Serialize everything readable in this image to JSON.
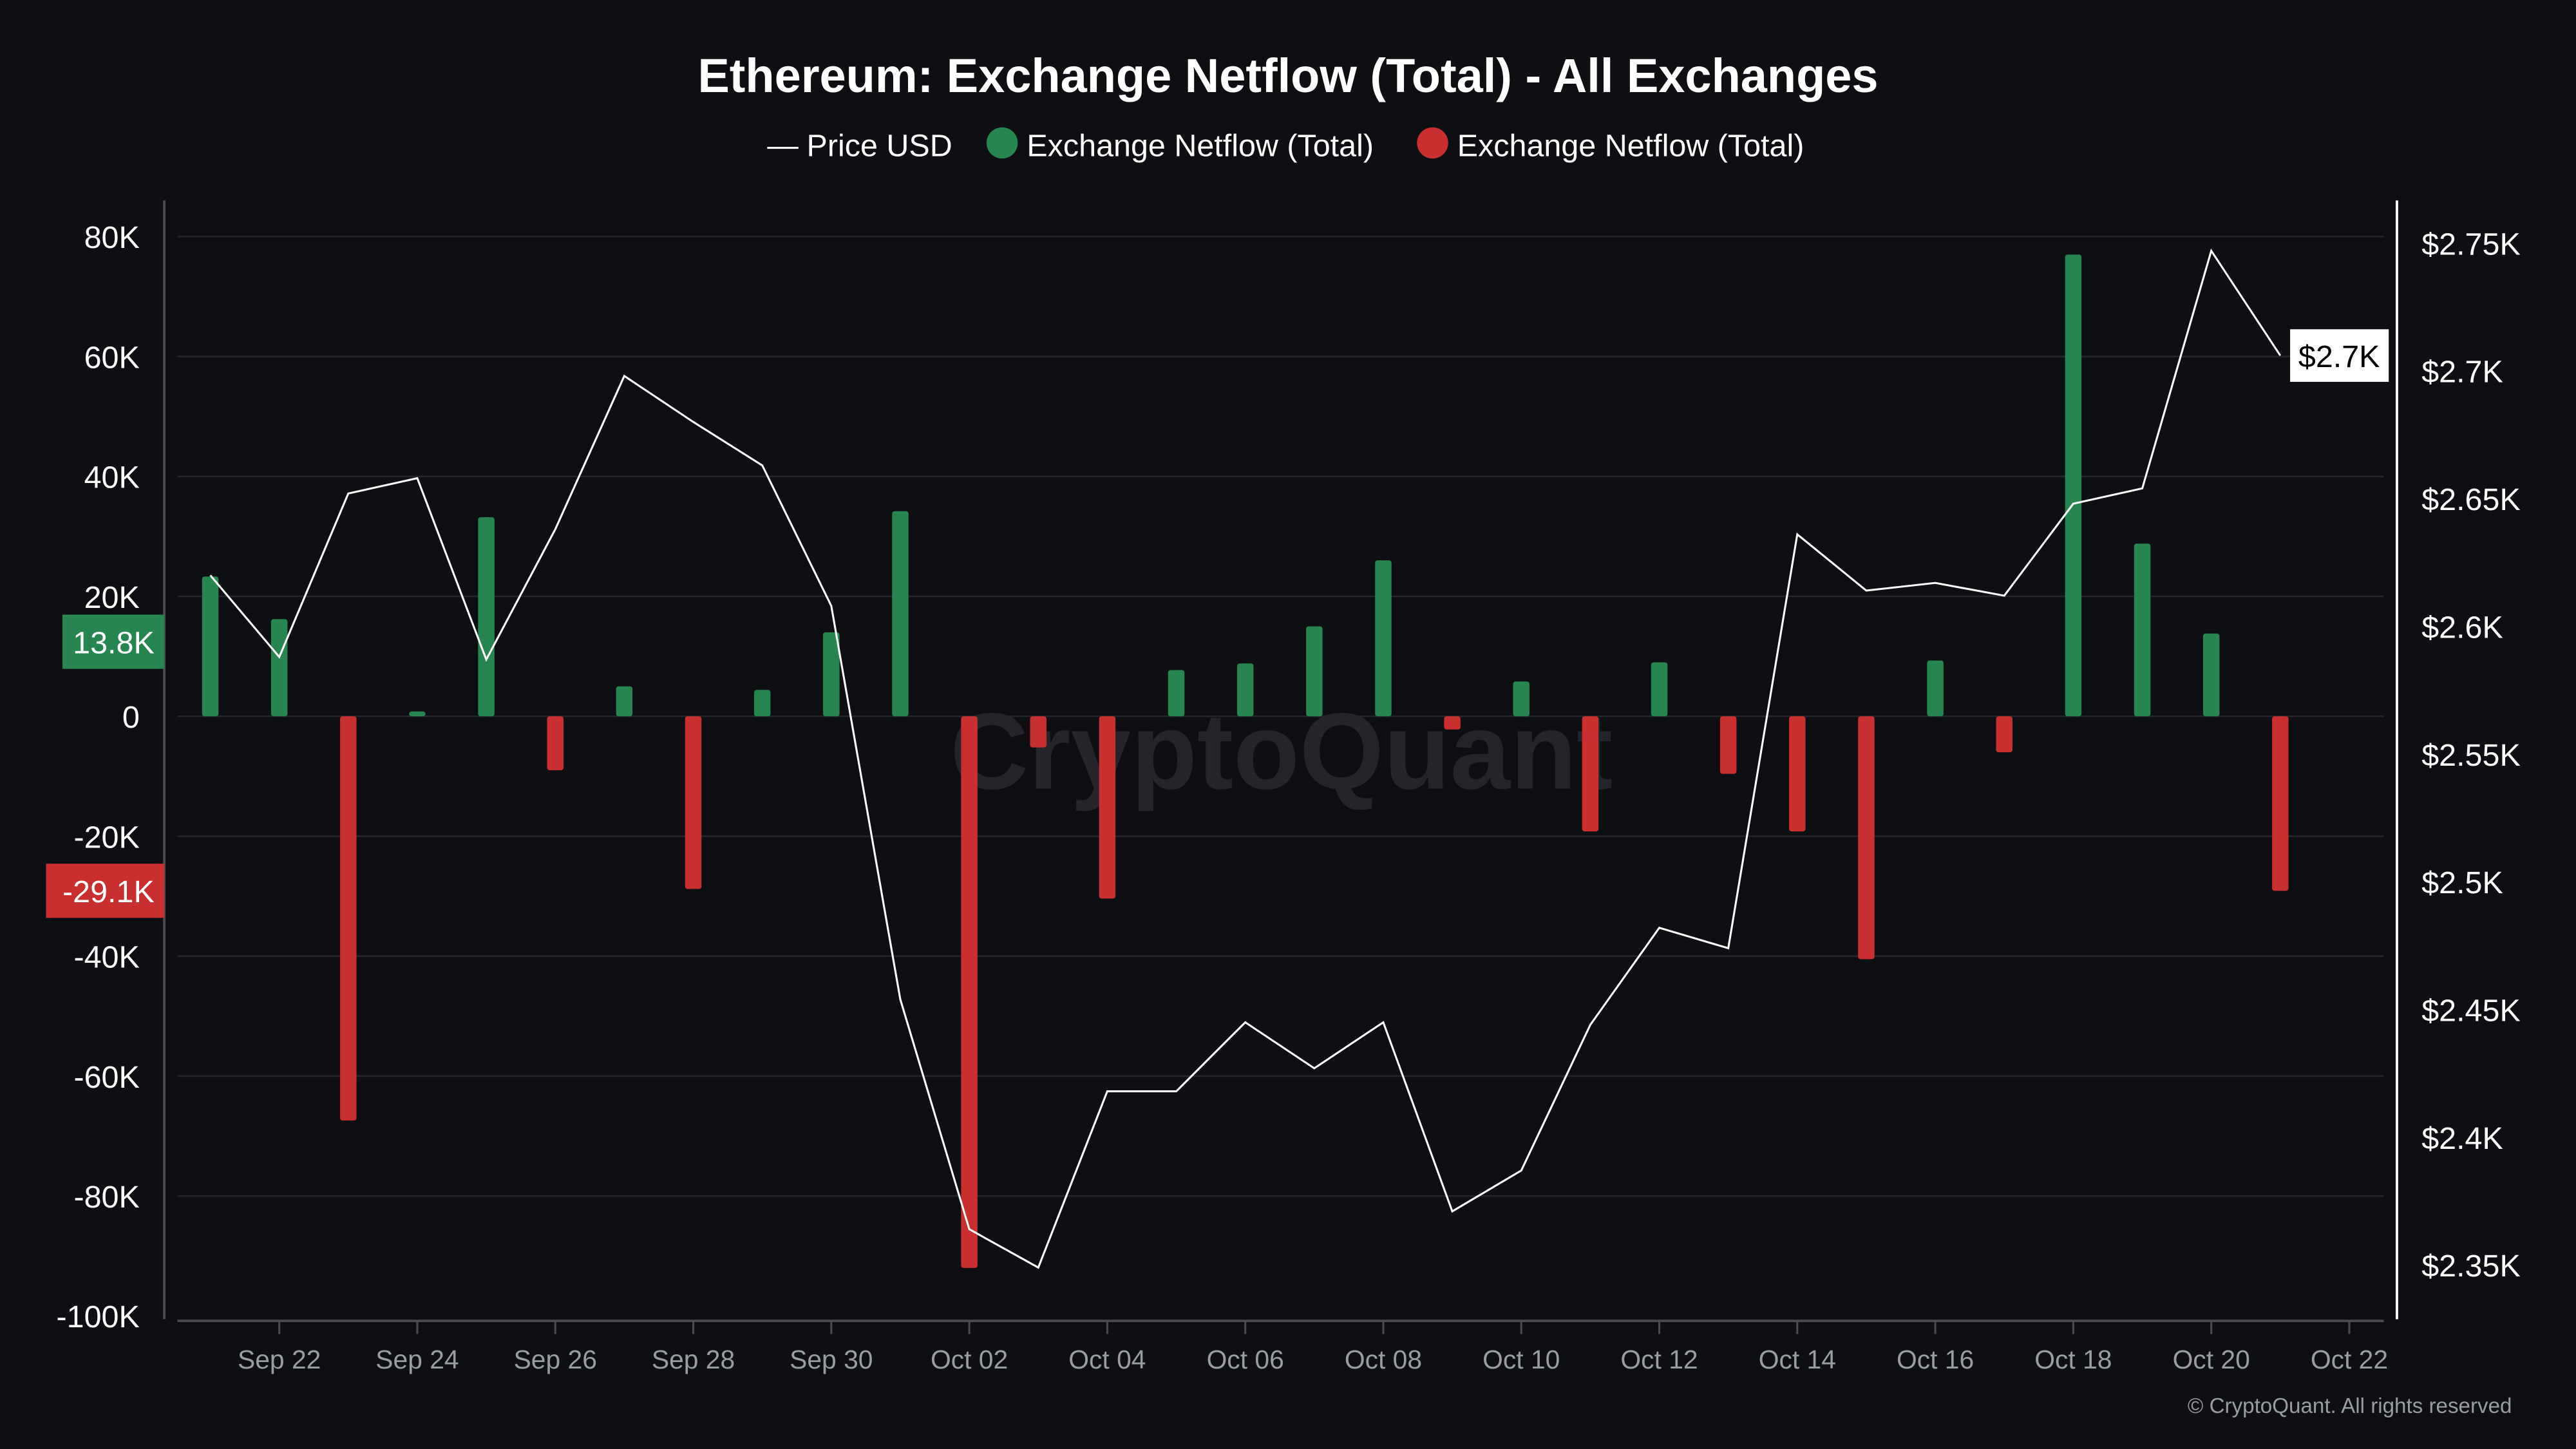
{
  "chart_data": {
    "type": "bar",
    "title": "Ethereum: Exchange Netflow (Total) - All Exchanges",
    "legend": {
      "placement": "top-center",
      "entries": [
        {
          "label": "Price USD",
          "marker": "line",
          "color": "#ffffff"
        },
        {
          "label": "Exchange Netflow (Total)",
          "marker": "dot",
          "color": "#27854f"
        },
        {
          "label": "Exchange Netflow (Total)",
          "marker": "dot",
          "color": "#c92f2f"
        }
      ]
    },
    "x": [
      "2024-09-21",
      "2024-09-22",
      "2024-09-23",
      "2024-09-24",
      "2024-09-25",
      "2024-09-26",
      "2024-09-27",
      "2024-09-28",
      "2024-09-29",
      "2024-09-30",
      "2024-10-01",
      "2024-10-02",
      "2024-10-03",
      "2024-10-04",
      "2024-10-05",
      "2024-10-06",
      "2024-10-07",
      "2024-10-08",
      "2024-10-09",
      "2024-10-10",
      "2024-10-11",
      "2024-10-12",
      "2024-10-13",
      "2024-10-14",
      "2024-10-15",
      "2024-10-16",
      "2024-10-17",
      "2024-10-18",
      "2024-10-19",
      "2024-10-20",
      "2024-10-21"
    ],
    "x_tick_labels": [
      "Sep 22",
      "Sep 24",
      "Sep 26",
      "Sep 28",
      "Sep 30",
      "Oct 02",
      "Oct 04",
      "Oct 06",
      "Oct 08",
      "Oct 10",
      "Oct 12",
      "Oct 14",
      "Oct 16",
      "Oct 18",
      "Oct 20",
      "Oct 22"
    ],
    "x_tick_dates": [
      "2024-09-22",
      "2024-09-24",
      "2024-09-26",
      "2024-09-28",
      "2024-09-30",
      "2024-10-02",
      "2024-10-04",
      "2024-10-06",
      "2024-10-08",
      "2024-10-10",
      "2024-10-12",
      "2024-10-14",
      "2024-10-16",
      "2024-10-18",
      "2024-10-20",
      "2024-10-22"
    ],
    "series": [
      {
        "name": "Exchange Netflow (Total)",
        "axis": "left",
        "type": "bar",
        "positive_color": "#27854f",
        "negative_color": "#c92f2f",
        "values": [
          23300,
          16200,
          -67400,
          800,
          33200,
          -9000,
          5000,
          -28800,
          4400,
          14000,
          34200,
          -92000,
          -5200,
          -30400,
          7700,
          8800,
          15000,
          26000,
          -2200,
          5800,
          -19200,
          9000,
          -9600,
          -19200,
          -40500,
          9300,
          -6000,
          77000,
          28800,
          13800,
          -29100
        ]
      },
      {
        "name": "Price USD",
        "axis": "right",
        "type": "line",
        "color": "#ffffff",
        "values": [
          2620,
          2588,
          2652,
          2658,
          2587,
          2638,
          2698,
          2680,
          2663,
          2608,
          2454,
          2364,
          2349,
          2418,
          2418,
          2445,
          2427,
          2445,
          2371,
          2387,
          2444,
          2482,
          2474,
          2636,
          2614,
          2617,
          2612,
          2648,
          2654,
          2747,
          2706
        ]
      }
    ],
    "y_left": {
      "ylim": [
        -100000,
        80000
      ],
      "tick_values": [
        80000,
        60000,
        40000,
        20000,
        0,
        -20000,
        -40000,
        -60000,
        -80000,
        -100000
      ],
      "tick_labels": [
        "80K",
        "60K",
        "40K",
        "20K",
        "0",
        "-20K",
        "-40K",
        "-60K",
        "-80K",
        "-100K"
      ]
    },
    "y_right": {
      "ylim": [
        2350,
        2750
      ],
      "tick_values": [
        2750,
        2700,
        2650,
        2600,
        2550,
        2500,
        2450,
        2400,
        2350
      ],
      "tick_labels": [
        "$2.75K",
        "$2.7K",
        "$2.65K",
        "$2.6K",
        "$2.55K",
        "$2.5K",
        "$2.45K",
        "$2.4K",
        "$2.35K"
      ]
    },
    "grid": true,
    "last_value_labels": {
      "positive": {
        "text": "13.8K",
        "value": 13800,
        "color": "#27854f"
      },
      "negative": {
        "text": "-29.1K",
        "value": -29100,
        "color": "#c92f2f"
      },
      "price": {
        "text": "$2.7K",
        "value": 2706,
        "color": "#ffffff"
      }
    },
    "watermark": "CryptoQuant",
    "copyright": "© CryptoQuant. All rights reserved"
  },
  "colors": {
    "background": "#0e0f12",
    "grid": "#25262b",
    "axis": "#4a4b52",
    "text": "#ffffff",
    "muted": "#9a9ca3"
  }
}
